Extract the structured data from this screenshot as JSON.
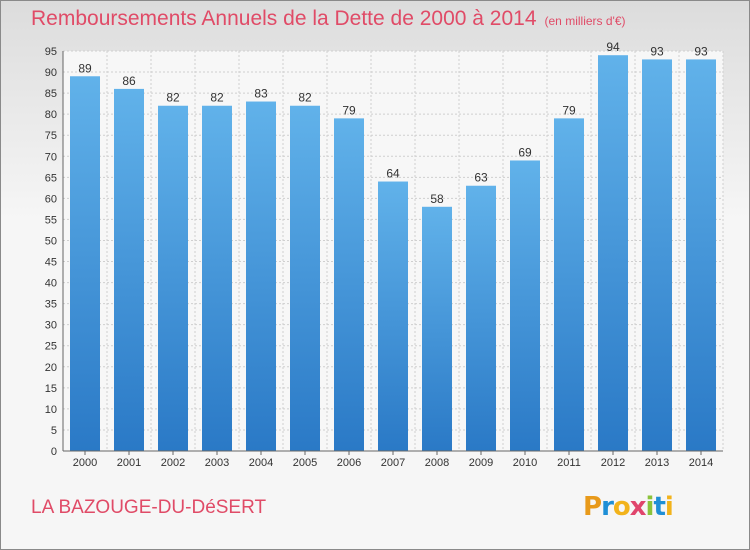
{
  "header": {
    "title": "Remboursements Annuels de la Dette de 2000 à 2014",
    "subtitle": "(en milliers d'€)"
  },
  "footer": {
    "commune": "LA BAZOUGE-DU-DéSERT",
    "logo_letters": [
      "P",
      "r",
      "o",
      "x",
      "i",
      "t",
      "i"
    ],
    "logo_colors": [
      "#e89a1b",
      "#1f8fd6",
      "#f2b31b",
      "#e0456c",
      "#8bc33b",
      "#1f8fd6",
      "#f2b31b"
    ]
  },
  "chart_data": {
    "type": "bar",
    "title": "Remboursements Annuels de la Dette de 2000 à 2014",
    "subtitle": "(en milliers d'€)",
    "categories": [
      "2000",
      "2001",
      "2002",
      "2003",
      "2004",
      "2005",
      "2006",
      "2007",
      "2008",
      "2009",
      "2010",
      "2011",
      "2012",
      "2013",
      "2014"
    ],
    "values": [
      89,
      86,
      82,
      82,
      83,
      82,
      79,
      64,
      58,
      63,
      69,
      79,
      94,
      93,
      93
    ],
    "ylim": [
      0,
      95
    ],
    "yticks": [
      0,
      5,
      10,
      15,
      20,
      25,
      30,
      35,
      40,
      45,
      50,
      55,
      60,
      65,
      70,
      75,
      80,
      85,
      90,
      95
    ],
    "ytick_labels": [
      "0",
      "5",
      "10",
      "15",
      "20",
      "25",
      "30",
      "35",
      "40",
      "45",
      "50",
      "55",
      "60",
      "65",
      "70",
      "75",
      "80",
      "85",
      "90",
      "95"
    ],
    "grid": true,
    "bar_color": "#3a8fd6"
  }
}
